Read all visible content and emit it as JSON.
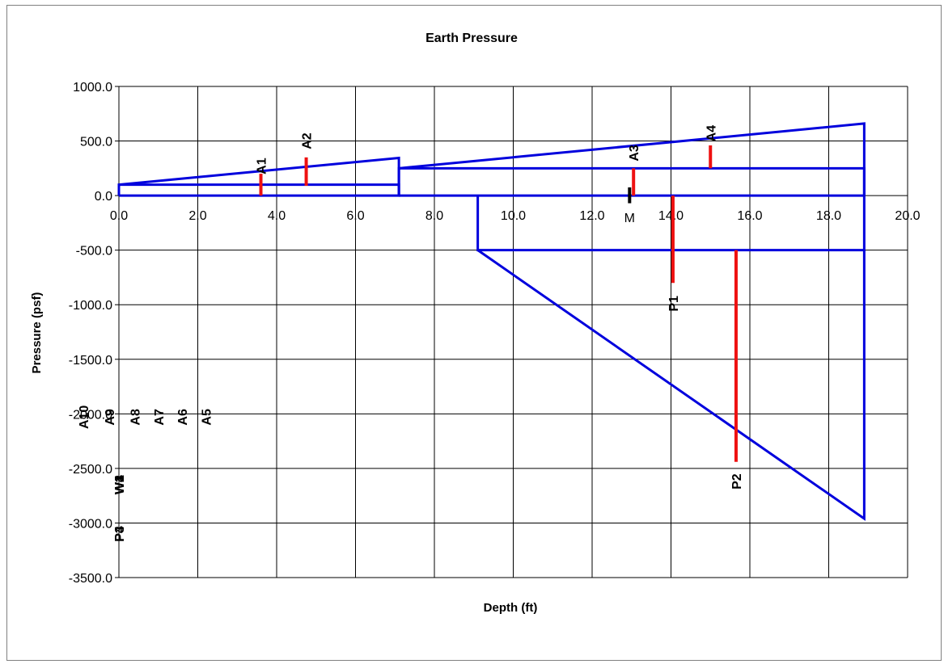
{
  "chart_data": {
    "type": "line",
    "title": "Earth Pressure",
    "xlabel": "Depth (ft)",
    "ylabel": "Pressure (psf)",
    "xlim": [
      0,
      20
    ],
    "ylim": [
      -3500,
      1000
    ],
    "x_ticks": [
      0,
      2,
      4,
      6,
      8,
      10,
      12,
      14,
      16,
      18,
      20
    ],
    "x_tick_labels": [
      "0.0",
      "2.0",
      "4.0",
      "6.0",
      "8.0",
      "10.0",
      "12.0",
      "14.0",
      "16.0",
      "18.0",
      "20.0"
    ],
    "y_ticks": [
      1000,
      500,
      0,
      -500,
      -1000,
      -1500,
      -2000,
      -2500,
      -3000,
      -3500
    ],
    "y_tick_labels": [
      "1000.0",
      "500.0",
      "0.0",
      "-500.0",
      "-1000.0",
      "-1500.0",
      "-2000.0",
      "-2500.0",
      "-3000.0",
      "-3500.0"
    ],
    "grid": true,
    "series_color": "#0000dd",
    "marker_color": "#ee1111",
    "moment_color": "#000000",
    "series": [
      {
        "x": [
          0,
          0,
          7.1,
          7.1,
          0
        ],
        "y": [
          0,
          100,
          100,
          0,
          0
        ]
      },
      {
        "x": [
          0,
          7.1,
          7.1
        ],
        "y": [
          100,
          345,
          0
        ]
      },
      {
        "x": [
          7.1,
          18.9
        ],
        "y": [
          0,
          0
        ]
      },
      {
        "x": [
          7.1,
          7.1,
          18.9,
          18.9
        ],
        "y": [
          0,
          250,
          250,
          0
        ]
      },
      {
        "x": [
          7.1,
          18.9,
          18.9
        ],
        "y": [
          250,
          660,
          0
        ]
      },
      {
        "x": [
          9.1,
          9.1,
          18.9,
          18.9
        ],
        "y": [
          0,
          -500,
          -500,
          0
        ]
      },
      {
        "x": [
          9.1,
          18.9,
          18.9
        ],
        "y": [
          -500,
          -2960,
          -500
        ]
      }
    ],
    "markers": [
      {
        "label": "A1",
        "x": 3.6,
        "y1": 0,
        "y2": 200,
        "label_y": 270
      },
      {
        "label": "A2",
        "x": 4.75,
        "y1": 90,
        "y2": 350,
        "label_y": 500
      },
      {
        "label": "A3",
        "x": 13.05,
        "y1": 0,
        "y2": 250,
        "label_y": 390
      },
      {
        "label": "A4",
        "x": 15.0,
        "y1": 250,
        "y2": 460,
        "label_y": 570
      },
      {
        "label": "P1",
        "x": 14.05,
        "y1": 0,
        "y2": -800,
        "label_y": -990
      },
      {
        "label": "P2",
        "x": 15.65,
        "y1": -500,
        "y2": -2440,
        "label_y": -2620
      }
    ],
    "moment_marker": {
      "label": "M",
      "x": 12.95,
      "y1": -70,
      "y2": 75
    },
    "extra_labels": [
      {
        "label": "A10",
        "x": -0.9,
        "y": -2030
      },
      {
        "label": "A9",
        "x": -0.25,
        "y": -2030
      },
      {
        "label": "A8",
        "x": 0.4,
        "y": -2030
      },
      {
        "label": "A7",
        "x": 1.0,
        "y": -2030
      },
      {
        "label": "A6",
        "x": 1.6,
        "y": -2030
      },
      {
        "label": "A5",
        "x": 2.2,
        "y": -2030
      },
      {
        "label": "W1",
        "x": 0,
        "y": -2650
      },
      {
        "label": "W2",
        "x": 0,
        "y": -2650
      },
      {
        "label": "W3",
        "x": 0,
        "y": -2650
      },
      {
        "label": "W4",
        "x": 0,
        "y": -2650
      },
      {
        "label": "P3",
        "x": 0,
        "y": -3100
      },
      {
        "label": "P4",
        "x": 0,
        "y": -3100
      }
    ]
  }
}
